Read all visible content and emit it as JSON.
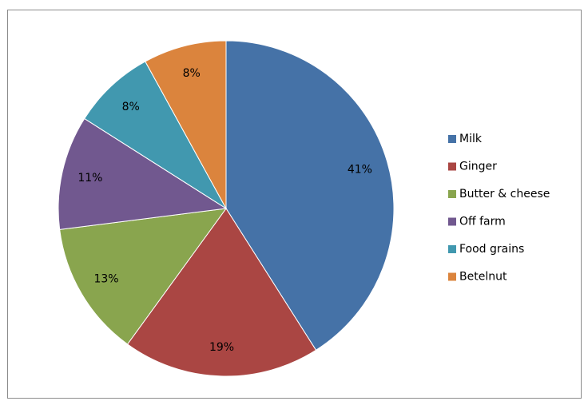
{
  "chart_data": {
    "type": "pie",
    "title": "",
    "legend_position": "right",
    "start_angle_deg": 0,
    "direction": "clockwise",
    "slices": [
      {
        "label": "Milk",
        "value": 41,
        "display": "41%",
        "color": "#4572a7"
      },
      {
        "label": "Ginger",
        "value": 19,
        "display": "19%",
        "color": "#aa4643"
      },
      {
        "label": "Butter & cheese",
        "value": 13,
        "display": "13%",
        "color": "#89a54e"
      },
      {
        "label": "Off farm",
        "value": 11,
        "display": "11%",
        "color": "#71588f"
      },
      {
        "label": "Food grains",
        "value": 8,
        "display": "8%",
        "color": "#4198af"
      },
      {
        "label": "Betelnut",
        "value": 8,
        "display": "8%",
        "color": "#db843d"
      }
    ]
  }
}
